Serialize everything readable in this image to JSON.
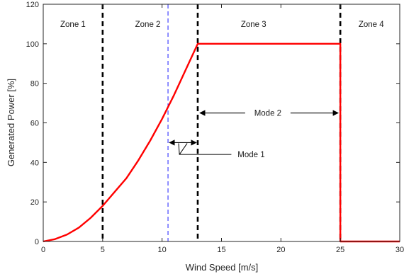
{
  "chart_data": {
    "type": "line",
    "title": "",
    "xlabel": "Wind Speed [m/s]",
    "ylabel": "Generated Power [%]",
    "xlim": [
      0,
      30
    ],
    "ylim": [
      0,
      120
    ],
    "xticks": [
      0,
      5,
      10,
      15,
      20,
      25,
      30
    ],
    "yticks": [
      0,
      20,
      40,
      60,
      80,
      100,
      120
    ],
    "grid": false,
    "series": [
      {
        "color": "#ff0000",
        "x": [
          0,
          1,
          2,
          3,
          4,
          5,
          6,
          7,
          8,
          9,
          10,
          11,
          12,
          13,
          14,
          15,
          16,
          17,
          18,
          19,
          20,
          21,
          22,
          23,
          24,
          25,
          25,
          26,
          27,
          28,
          29,
          30
        ],
        "y": [
          0,
          1.2,
          3.5,
          7,
          12,
          18,
          25,
          32,
          41,
          51,
          62,
          74,
          87,
          100,
          100,
          100,
          100,
          100,
          100,
          100,
          100,
          100,
          100,
          100,
          100,
          100,
          0,
          0,
          0,
          0,
          0,
          0
        ]
      }
    ],
    "vlines": [
      {
        "x": 5,
        "color": "#000000",
        "style": "dashed-thick"
      },
      {
        "x": 10.5,
        "color": "#3333ff",
        "style": "dashed-thin"
      },
      {
        "x": 13,
        "color": "#000000",
        "style": "dashed-thick"
      },
      {
        "x": 25,
        "color": "#000000",
        "style": "dashed-thick"
      }
    ],
    "zones": [
      {
        "label": "Zone 1",
        "x": 2.5,
        "y": 110
      },
      {
        "label": "Zone 2",
        "x": 8.8,
        "y": 110
      },
      {
        "label": "Zone 3",
        "x": 17.7,
        "y": 110
      },
      {
        "label": "Zone 4",
        "x": 27.6,
        "y": 110
      }
    ],
    "annotations": [
      {
        "label": "Mode 2",
        "span": [
          13,
          25
        ],
        "y": 65,
        "text_x": 18.9
      },
      {
        "label": "Mode 1",
        "span": [
          10.5,
          13
        ],
        "y": 50,
        "text_x": 17.5,
        "text_y": 44,
        "leader_from": [
          11.7,
          44
        ]
      }
    ]
  }
}
